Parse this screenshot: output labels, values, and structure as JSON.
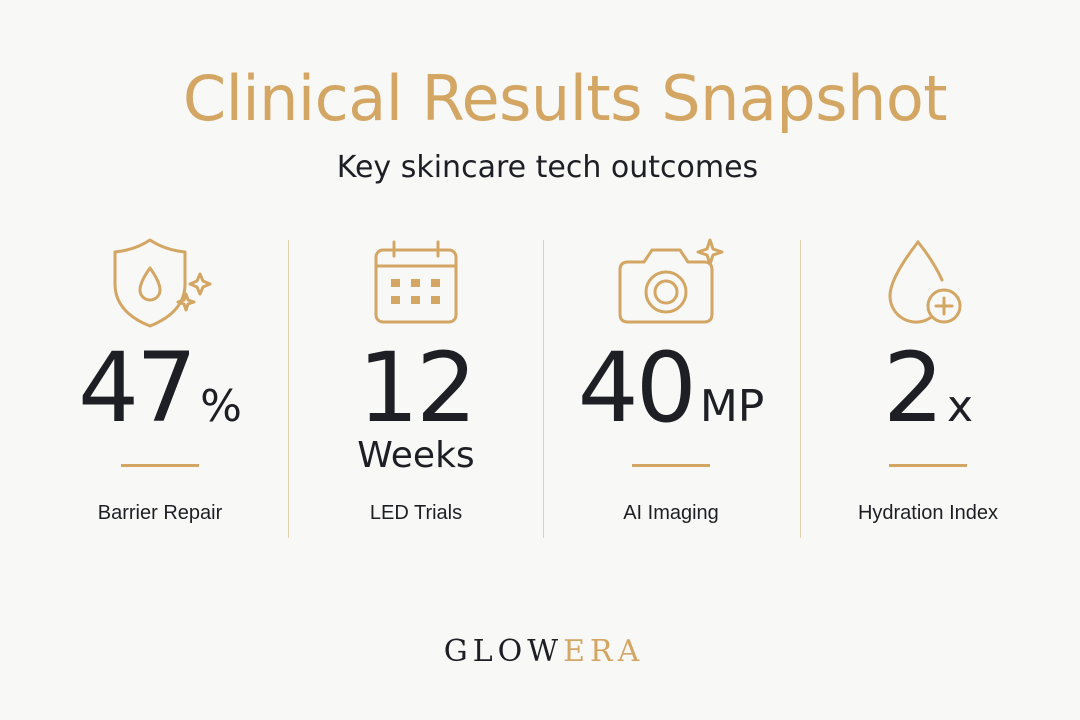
{
  "header": {
    "title": "Clinical Results Snapshot",
    "subtitle": "Key skincare tech outcomes"
  },
  "stats": [
    {
      "value": 47,
      "unit": "%",
      "label": "Barrier Repair"
    },
    {
      "value": 12,
      "unit": "Weeks",
      "label": "LED Trials"
    },
    {
      "value": 40,
      "unit": "MP",
      "label": "AI Imaging"
    },
    {
      "value": 2,
      "unit": "x",
      "label": "Hydration Index"
    }
  ],
  "brand": {
    "first": "GLOW",
    "second": "ERA"
  }
}
